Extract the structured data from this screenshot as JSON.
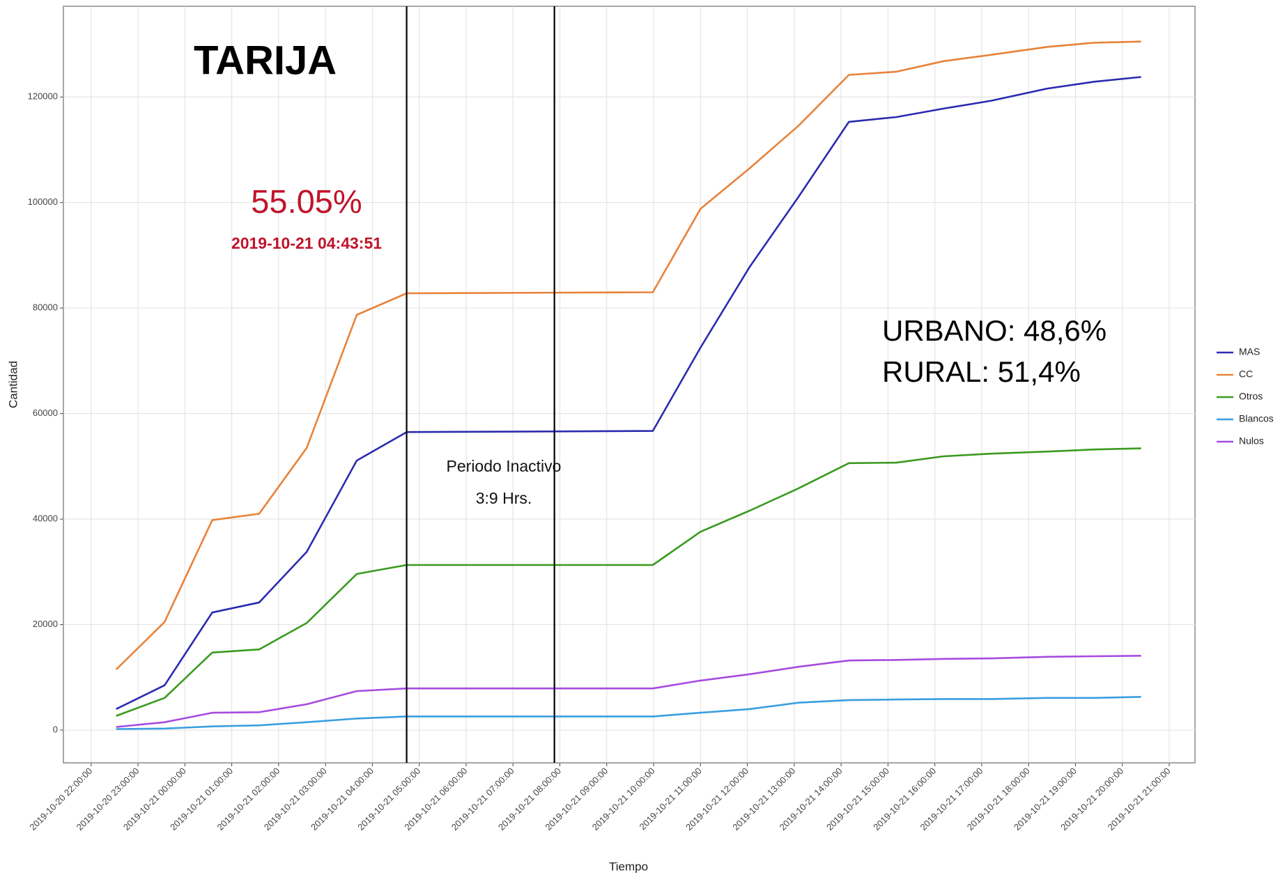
{
  "chart_data": {
    "type": "line",
    "title": "TARIJA",
    "xlabel": "Tiempo",
    "ylabel": "Cantidad",
    "annotations": {
      "percent": "55.05%",
      "timestamp": "2019-10-21 04:43:51",
      "inactive": "Periodo Inactivo",
      "inactive_hours": "3:9 Hrs.",
      "urbano": "URBANO: 48,6%",
      "rural": "RURAL: 51,4%"
    },
    "vlines": [
      "2019-10-21 04:43:51",
      "2019-10-21 07:53:00"
    ],
    "x": [
      "2019-10-20 22:32:00",
      "2019-10-20 23:34:00",
      "2019-10-21 00:35:00",
      "2019-10-21 01:35:00",
      "2019-10-21 02:36:00",
      "2019-10-21 03:40:00",
      "2019-10-21 04:43:51",
      "2019-10-21 09:59:00",
      "2019-10-21 11:00:00",
      "2019-10-21 12:03:00",
      "2019-10-21 13:05:00",
      "2019-10-21 14:10:00",
      "2019-10-21 15:11:00",
      "2019-10-21 16:11:00",
      "2019-10-21 17:12:00",
      "2019-10-21 18:24:00",
      "2019-10-21 19:24:00",
      "2019-10-21 20:24:00"
    ],
    "series": [
      {
        "name": "MAS",
        "color": "#2b2bb0",
        "values": [
          4000,
          8500,
          22300,
          24200,
          33800,
          51100,
          56500,
          56700,
          72500,
          87800,
          101000,
          115300,
          116200,
          117800,
          119300,
          121600,
          122900,
          123800
        ]
      },
      {
        "name": "CC",
        "color": "#e8823a",
        "values": [
          11500,
          20500,
          39800,
          41000,
          53500,
          78700,
          82800,
          83000,
          98800,
          106500,
          114500,
          124200,
          124800,
          126800,
          128000,
          129500,
          130300,
          130500
        ]
      },
      {
        "name": "Otros",
        "color": "#3a9a1f",
        "values": [
          2700,
          6100,
          14700,
          15300,
          20300,
          29600,
          31300,
          31300,
          37600,
          41600,
          45800,
          50600,
          50700,
          51900,
          52400,
          52800,
          53200,
          53400
        ]
      },
      {
        "name": "Blancos",
        "color": "#3a9ee0",
        "values": [
          200,
          300,
          700,
          900,
          1500,
          2200,
          2600,
          2600,
          3300,
          4000,
          5200,
          5700,
          5800,
          5900,
          5900,
          6100,
          6100,
          6300
        ]
      },
      {
        "name": "Nulos",
        "color": "#a64be0",
        "values": [
          600,
          1500,
          3300,
          3400,
          4900,
          7400,
          7900,
          7900,
          9400,
          10600,
          12000,
          13200,
          13300,
          13500,
          13600,
          13900,
          14000,
          14100
        ]
      }
    ],
    "xlim": [
      "2019-10-20 21:24:30",
      "2019-10-21 21:33:00"
    ],
    "xticks": [
      "2019-10-20 22:00:00",
      "2019-10-20 23:00:00",
      "2019-10-21 00:00:00",
      "2019-10-21 01:00:00",
      "2019-10-21 02:00:00",
      "2019-10-21 03:00:00",
      "2019-10-21 04:00:00",
      "2019-10-21 05:00:00",
      "2019-10-21 06:00:00",
      "2019-10-21 07:00:00",
      "2019-10-21 08:00:00",
      "2019-10-21 09:00:00",
      "2019-10-21 10:00:00",
      "2019-10-21 11:00:00",
      "2019-10-21 12:00:00",
      "2019-10-21 13:00:00",
      "2019-10-21 14:00:00",
      "2019-10-21 15:00:00",
      "2019-10-21 16:00:00",
      "2019-10-21 17:00:00",
      "2019-10-21 18:00:00",
      "2019-10-21 19:00:00",
      "2019-10-21 20:00:00",
      "2019-10-21 21:00:00"
    ],
    "ylim": [
      -6200,
      137200
    ],
    "yticks": [
      0,
      20000,
      40000,
      60000,
      80000,
      100000,
      120000
    ],
    "grid": true,
    "legend": "right"
  }
}
